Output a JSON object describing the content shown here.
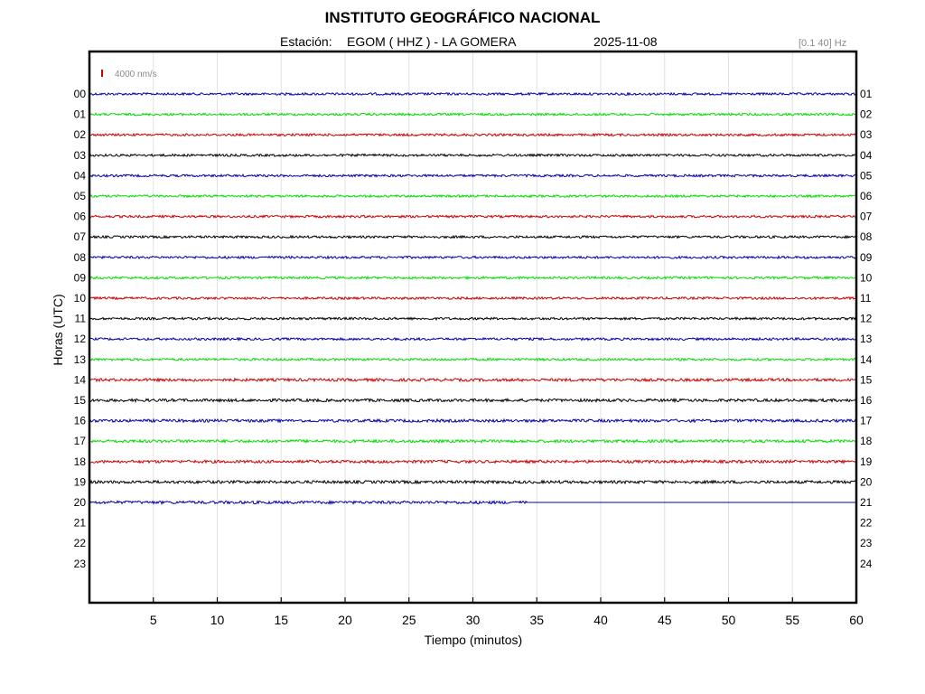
{
  "header": {
    "title": "INSTITUTO GEOGRÁFICO NACIONAL",
    "station_label": "Estación:",
    "station_name": "EGOM ( HHZ ) - LA GOMERA",
    "date": "2025-11-08",
    "filter": "[0.1 40] Hz"
  },
  "chart_data": {
    "type": "line",
    "title": "INSTITUTO GEOGRÁFICO NACIONAL",
    "xlabel": "Tiempo (minutos)",
    "ylabel": "Horas (UTC)",
    "xlim": [
      0,
      60
    ],
    "x_ticks": [
      5,
      10,
      15,
      20,
      25,
      30,
      35,
      40,
      45,
      50,
      55,
      60
    ],
    "grid": true,
    "scale_label": "4000 nm/s",
    "scale_color": "#cc0000",
    "left_hour_labels": [
      "00",
      "01",
      "02",
      "03",
      "04",
      "05",
      "06",
      "07",
      "08",
      "09",
      "10",
      "11",
      "12",
      "13",
      "14",
      "15",
      "16",
      "17",
      "18",
      "19",
      "20",
      "21",
      "22",
      "23"
    ],
    "right_hour_labels": [
      "01",
      "02",
      "03",
      "04",
      "05",
      "06",
      "07",
      "08",
      "09",
      "10",
      "11",
      "12",
      "13",
      "14",
      "15",
      "16",
      "17",
      "18",
      "19",
      "20",
      "21",
      "22",
      "23",
      "24"
    ],
    "trace_colors": [
      "#0000aa",
      "#00dd00",
      "#cc0000",
      "#000000"
    ],
    "series": [
      {
        "hour": "00",
        "x_end": 60,
        "noise": 1.3
      },
      {
        "hour": "01",
        "x_end": 60,
        "noise": 1.3
      },
      {
        "hour": "02",
        "x_end": 60,
        "noise": 1.3
      },
      {
        "hour": "03",
        "x_end": 60,
        "noise": 1.3
      },
      {
        "hour": "04",
        "x_end": 60,
        "noise": 1.3
      },
      {
        "hour": "05",
        "x_end": 60,
        "noise": 1.3
      },
      {
        "hour": "06",
        "x_end": 60,
        "noise": 1.3
      },
      {
        "hour": "07",
        "x_end": 60,
        "noise": 1.3
      },
      {
        "hour": "08",
        "x_end": 60,
        "noise": 1.3
      },
      {
        "hour": "09",
        "x_end": 60,
        "noise": 1.3
      },
      {
        "hour": "10",
        "x_end": 60,
        "noise": 1.3
      },
      {
        "hour": "11",
        "x_end": 60,
        "noise": 1.3
      },
      {
        "hour": "12",
        "x_end": 60,
        "noise": 1.3
      },
      {
        "hour": "13",
        "x_end": 60,
        "noise": 1.3
      },
      {
        "hour": "14",
        "x_end": 60,
        "noise": 1.6
      },
      {
        "hour": "15",
        "x_end": 60,
        "noise": 1.6
      },
      {
        "hour": "16",
        "x_end": 60,
        "noise": 1.6
      },
      {
        "hour": "17",
        "x_end": 60,
        "noise": 1.6
      },
      {
        "hour": "18",
        "x_end": 60,
        "noise": 1.6
      },
      {
        "hour": "19",
        "x_end": 60,
        "noise": 1.6
      },
      {
        "hour": "20",
        "x_end": 34.3,
        "noise": 1.6
      }
    ]
  }
}
